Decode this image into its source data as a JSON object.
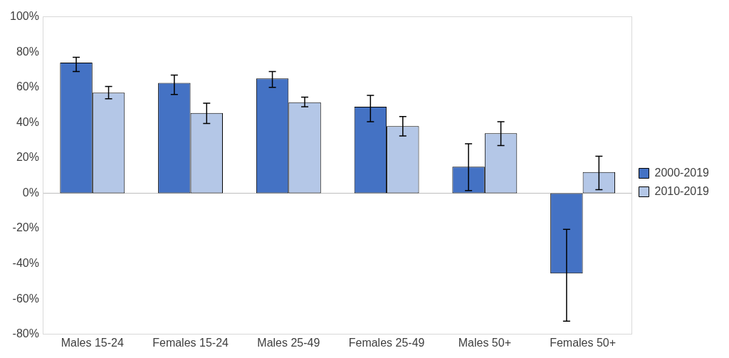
{
  "chart_data": {
    "type": "bar",
    "categories": [
      "Males 15-24",
      "Females 15-24",
      "Males 25-49",
      "Females 25-49",
      "Males 50+",
      "Females 50+"
    ],
    "series": [
      {
        "name": "2000-2019",
        "color": "#4472c4",
        "values": [
          74,
          62.5,
          65,
          49,
          15,
          -45.5
        ],
        "errors": [
          [
            69,
            77
          ],
          [
            56,
            67
          ],
          [
            60,
            69
          ],
          [
            40.5,
            55.5
          ],
          [
            1.5,
            28
          ],
          [
            -72.5,
            -20.5
          ]
        ]
      },
      {
        "name": "2010-2019",
        "color": "#b4c7e7",
        "values": [
          57,
          45.5,
          51.5,
          38,
          34,
          12
        ],
        "errors": [
          [
            53.5,
            60.5
          ],
          [
            39.5,
            51
          ],
          [
            49,
            54.5
          ],
          [
            32.5,
            43.5
          ],
          [
            27,
            40.5
          ],
          [
            2,
            21
          ]
        ]
      }
    ],
    "ylim": [
      -80,
      100
    ],
    "yticks": [
      {
        "value": -80,
        "label": "-80%"
      },
      {
        "value": -60,
        "label": "-60%"
      },
      {
        "value": -40,
        "label": "-40%"
      },
      {
        "value": -20,
        "label": "-20%"
      },
      {
        "value": 0,
        "label": "0%"
      },
      {
        "value": 20,
        "label": "20%"
      },
      {
        "value": 40,
        "label": "40%"
      },
      {
        "value": 60,
        "label": "60%"
      },
      {
        "value": 80,
        "label": "80%"
      },
      {
        "value": 100,
        "label": "100%"
      }
    ],
    "ref_lines": [
      {
        "axis": "y",
        "value": 0,
        "color": "#bfbfbf"
      }
    ],
    "grid": false,
    "legend": "right"
  }
}
